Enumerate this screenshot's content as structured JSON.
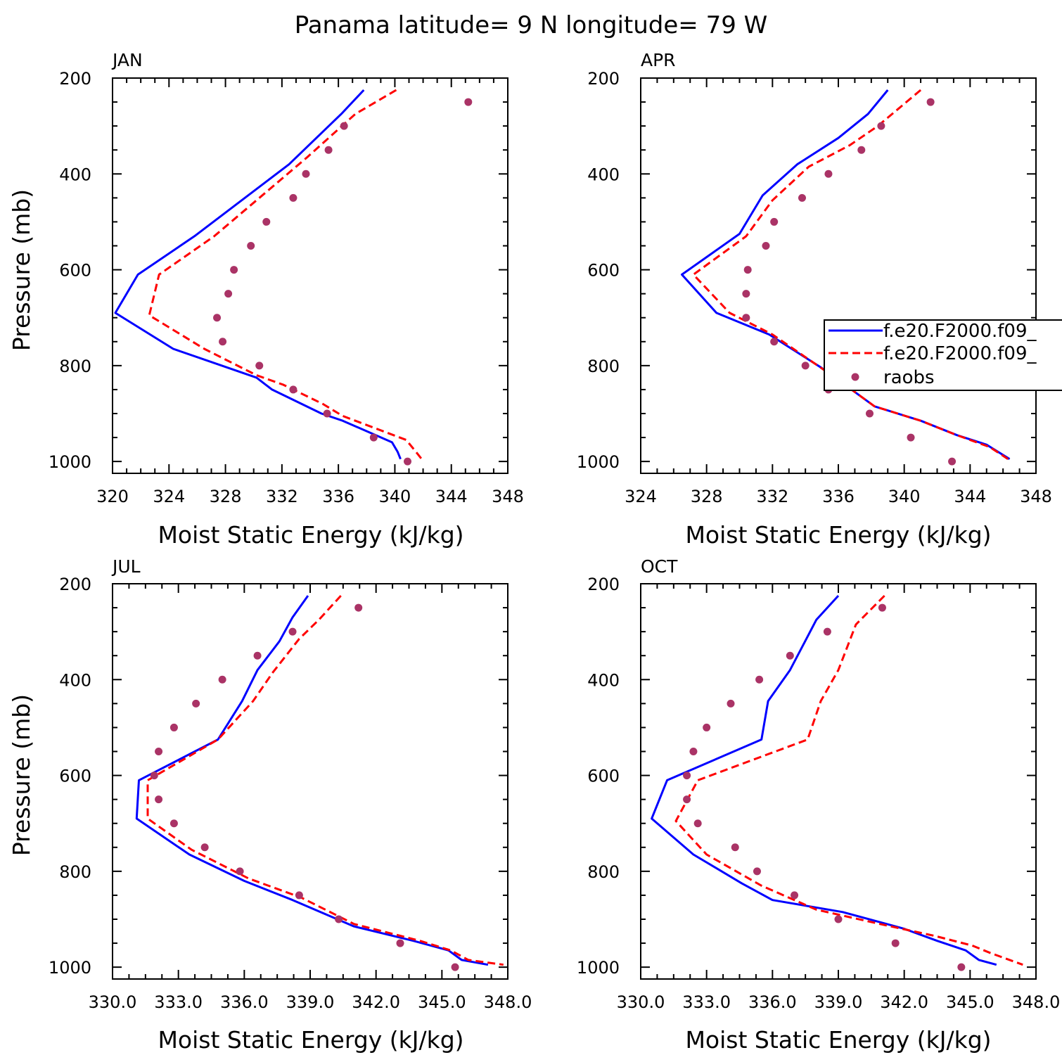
{
  "chart_data": {
    "title": "Panama  latitude= 9 N longitude= 79 W",
    "legend": {
      "placement": "right of APR panel",
      "entries": [
        "f.e20.F2000.f09_",
        "f.e20.F2000.f09_",
        "raobs"
      ]
    },
    "colors": {
      "model1": "#0000ff",
      "model2": "#ff0000",
      "raobs": "#aa3366"
    },
    "panels": [
      {
        "type": "line",
        "title": "JAN",
        "xlabel": "Moist Static Energy (kJ/kg)",
        "ylabel": "Pressure (mb)",
        "xlim": [
          320,
          348
        ],
        "xticks": [
          "320",
          "324",
          "328",
          "332",
          "336",
          "340",
          "344",
          "348"
        ],
        "ylim": [
          1000,
          200
        ],
        "yticks": [
          "200",
          "400",
          "600",
          "800",
          "1000"
        ],
        "series": [
          {
            "name": "f.e20.F2000.f09_",
            "style": "solid",
            "x": [
              337.8,
              336.2,
              332.5,
              325.8,
              321.8,
              320.2,
              324.3,
              330.2,
              331.3,
              334.8,
              336.3,
              339.8,
              340.2,
              340.4
            ],
            "p": [
              225,
              275,
              380,
              530,
              610,
              690,
              765,
              825,
              850,
              900,
              915,
              960,
              980,
              995
            ]
          },
          {
            "name": "f.e20.F2000.f09_",
            "style": "dashed",
            "x": [
              340.1,
              337.2,
              333.8,
              327.2,
              323.3,
              322.6,
              326.5,
              330.2,
              332.1,
              334.9,
              336.3,
              340.8,
              341.5,
              341.9
            ],
            "p": [
              225,
              275,
              365,
              530,
              610,
              695,
              765,
              820,
              840,
              880,
              905,
              955,
              980,
              995
            ]
          },
          {
            "name": "raobs",
            "style": "markers",
            "x": [
              345.2,
              336.4,
              335.3,
              333.7,
              332.8,
              330.9,
              329.8,
              328.6,
              328.2,
              327.4,
              327.8,
              330.4,
              332.8,
              335.2,
              338.5,
              340.9
            ],
            "p": [
              250,
              300,
              350,
              400,
              450,
              500,
              550,
              600,
              650,
              700,
              750,
              800,
              850,
              900,
              950,
              1000
            ]
          }
        ]
      },
      {
        "type": "line",
        "title": "APR",
        "xlabel": "Moist Static Energy (kJ/kg)",
        "ylabel": "",
        "xlim": [
          324,
          348
        ],
        "xticks": [
          "324",
          "328",
          "332",
          "336",
          "340",
          "344",
          "348"
        ],
        "ylim": [
          1000,
          200
        ],
        "yticks": [
          "200",
          "400",
          "600",
          "800",
          "1000"
        ],
        "series": [
          {
            "name": "f.e20.F2000.f09_",
            "style": "solid",
            "x": [
              339.0,
              337.8,
              336.0,
              333.5,
              331.4,
              330.0,
              326.5,
              328.6,
              331.8,
              335.0,
              338.2,
              341.0,
              343.2,
              345.0,
              346.4
            ],
            "p": [
              225,
              275,
              325,
              380,
              445,
              525,
              610,
              690,
              735,
              805,
              885,
              915,
              945,
              965,
              995
            ]
          },
          {
            "name": "f.e20.F2000.f09_",
            "style": "dashed",
            "x": [
              341.0,
              338.4,
              336.7,
              334.2,
              332.0,
              330.4,
              327.2,
              329.4,
              332.0,
              335.6,
              338.2,
              341.0,
              343.2,
              345.2,
              346.3
            ],
            "p": [
              225,
              300,
              340,
              385,
              455,
              530,
              610,
              690,
              735,
              820,
              885,
              915,
              945,
              970,
              995
            ]
          },
          {
            "name": "raobs",
            "style": "markers",
            "x": [
              341.6,
              338.6,
              337.4,
              335.4,
              333.8,
              332.1,
              331.6,
              330.5,
              330.4,
              330.4,
              332.1,
              334.0,
              335.4,
              337.9,
              340.4,
              342.9
            ],
            "p": [
              250,
              300,
              350,
              400,
              450,
              500,
              550,
              600,
              650,
              700,
              750,
              800,
              850,
              900,
              950,
              1000
            ]
          }
        ]
      },
      {
        "type": "line",
        "title": "JUL",
        "xlabel": "Moist Static Energy (kJ/kg)",
        "ylabel": "Pressure (mb)",
        "xlim": [
          330,
          348
        ],
        "xticks": [
          "330.0",
          "333.0",
          "336.0",
          "339.0",
          "342.0",
          "345.0",
          "348.0"
        ],
        "ylim": [
          1000,
          200
        ],
        "yticks": [
          "200",
          "400",
          "600",
          "800",
          "1000"
        ],
        "series": [
          {
            "name": "f.e20.F2000.f09_",
            "style": "solid",
            "x": [
              338.9,
              338.2,
              337.6,
              336.6,
              335.9,
              334.8,
              331.2,
              331.1,
              333.5,
              336.0,
              338.2,
              341.0,
              343.7,
              345.3,
              345.9,
              347.1
            ],
            "p": [
              225,
              270,
              320,
              380,
              445,
              525,
              610,
              690,
              765,
              820,
              860,
              915,
              945,
              965,
              985,
              995
            ]
          },
          {
            "name": "f.e20.F2000.f09_",
            "style": "dashed",
            "x": [
              340.4,
              339.4,
              338.5,
              337.3,
              336.4,
              334.8,
              331.6,
              331.6,
              333.6,
              336.2,
              338.6,
              341.0,
              344.0,
              345.4,
              346.2,
              347.8
            ],
            "p": [
              225,
              275,
              315,
              385,
              445,
              525,
              610,
              690,
              755,
              815,
              855,
              910,
              945,
              965,
              985,
              995
            ]
          },
          {
            "name": "raobs",
            "style": "markers",
            "x": [
              341.2,
              338.2,
              336.6,
              335.0,
              333.8,
              332.8,
              332.1,
              331.9,
              332.1,
              332.8,
              334.2,
              335.8,
              338.5,
              340.3,
              343.1,
              345.6
            ],
            "p": [
              250,
              300,
              350,
              400,
              450,
              500,
              550,
              600,
              650,
              700,
              750,
              800,
              850,
              900,
              950,
              1000
            ]
          }
        ]
      },
      {
        "type": "line",
        "title": "OCT",
        "xlabel": "Moist Static Energy (kJ/kg)",
        "ylabel": "",
        "xlim": [
          330,
          348
        ],
        "xticks": [
          "330.0",
          "333.0",
          "336.0",
          "339.0",
          "342.0",
          "345.0",
          "348.0"
        ],
        "ylim": [
          1000,
          200
        ],
        "yticks": [
          "200",
          "400",
          "600",
          "800",
          "1000"
        ],
        "series": [
          {
            "name": "f.e20.F2000.f09_",
            "style": "solid",
            "x": [
              339.0,
              338.0,
              336.8,
              335.8,
              335.5,
              331.2,
              330.5,
              332.4,
              334.6,
              336.0,
              339.2,
              342.0,
              343.5,
              344.8,
              345.4,
              346.2
            ],
            "p": [
              225,
              275,
              380,
              445,
              525,
              610,
              690,
              765,
              825,
              860,
              885,
              920,
              945,
              965,
              985,
              995
            ]
          },
          {
            "name": "f.e20.F2000.f09_",
            "style": "dashed",
            "x": [
              341.1,
              339.8,
              339.0,
              338.2,
              337.6,
              332.6,
              331.6,
              333.0,
              335.5,
              338.0,
              340.9,
              343.4,
              345.1,
              345.9,
              347.4
            ],
            "p": [
              225,
              285,
              380,
              445,
              525,
              610,
              695,
              765,
              830,
              880,
              910,
              935,
              955,
              970,
              995
            ]
          },
          {
            "name": "raobs",
            "style": "markers",
            "x": [
              341.0,
              338.5,
              336.8,
              335.4,
              334.1,
              333.0,
              332.4,
              332.1,
              332.1,
              332.6,
              334.3,
              335.3,
              337.0,
              339.0,
              341.6,
              344.6
            ],
            "p": [
              250,
              300,
              350,
              400,
              450,
              500,
              550,
              600,
              650,
              700,
              750,
              800,
              850,
              900,
              950,
              1000
            ]
          }
        ]
      }
    ]
  }
}
